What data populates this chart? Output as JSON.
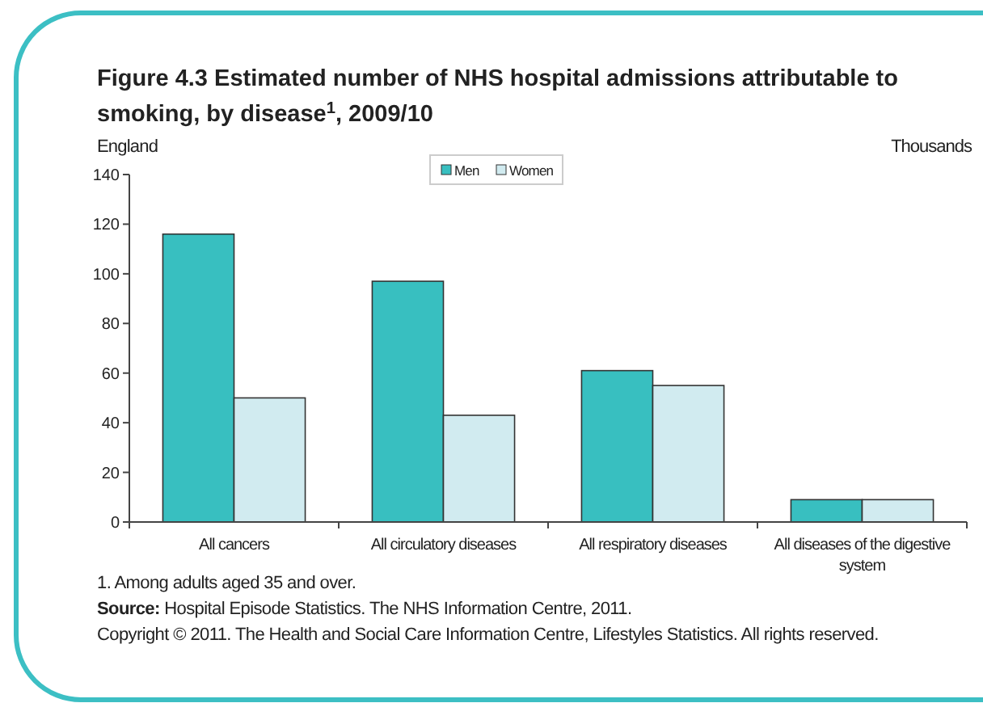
{
  "chart_data": {
    "type": "bar",
    "title": "Figure 4.3 Estimated number of NHS hospital admissions attributable to smoking, by disease$^{1}$, 2009/10",
    "subtitle": "England",
    "ylabel": "Thousands",
    "categories": [
      "All cancers",
      "All circulatory diseases",
      "All respiratory diseases",
      "All diseases of the digestive system"
    ],
    "series": [
      {
        "name": "Men",
        "color": "#38bfc0",
        "values": [
          116,
          97,
          61,
          9
        ]
      },
      {
        "name": "Women",
        "color": "#d1ebf0",
        "values": [
          50,
          43,
          55,
          9
        ]
      }
    ],
    "ylim": [
      0,
      140
    ],
    "yticks": [
      0,
      20,
      40,
      60,
      80,
      100,
      120,
      140
    ],
    "legend": "top",
    "grid": false,
    "annotations": [
      "1. Among adults aged 35 and over.",
      "Source: Hospital Episode Statistics. The NHS Information Centre, 2011.",
      "Copyright © 2011. The Health and Social Care Information Centre, Lifestyles Statistics. All rights reserved."
    ]
  }
}
